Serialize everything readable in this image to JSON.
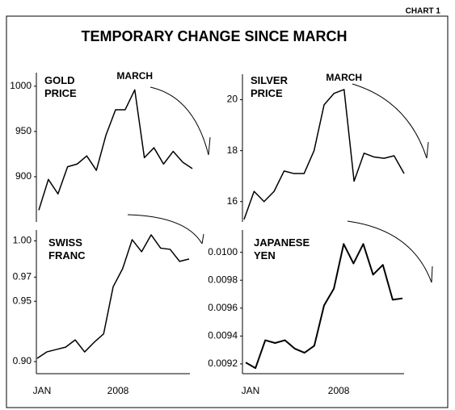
{
  "header": {
    "label": "CHART 1",
    "title": "TEMPORARY CHANGE SINCE MARCH"
  },
  "chart_data": [
    {
      "type": "line",
      "title": "GOLD PRICE",
      "annotation": "MARCH",
      "categories": [
        null,
        null,
        null,
        null,
        null,
        null,
        null,
        null,
        null,
        null,
        null,
        null,
        null,
        null,
        null,
        null,
        null
      ],
      "values": [
        863,
        897,
        881,
        911,
        914,
        923,
        907,
        946,
        974,
        974,
        996,
        921,
        932,
        914,
        928,
        916,
        909
      ],
      "color": "#000000",
      "ylim": [
        850,
        1015
      ],
      "yticks": [
        900,
        950,
        1000
      ]
    },
    {
      "type": "line",
      "title": "SILVER PRICE",
      "annotation": "MARCH",
      "categories": [
        null,
        null,
        null,
        null,
        null,
        null,
        null,
        null,
        null,
        null,
        null,
        null,
        null,
        null,
        null,
        null,
        null
      ],
      "values": [
        15.3,
        16.4,
        16.0,
        16.4,
        17.2,
        17.1,
        17.1,
        18.0,
        19.8,
        20.25,
        20.4,
        16.8,
        17.9,
        17.75,
        17.7,
        17.8,
        17.1
      ],
      "color": "#000000",
      "ylim": [
        15.2,
        21
      ],
      "yticks": [
        16,
        18,
        20
      ]
    },
    {
      "type": "line",
      "title": "SWISS FRANC",
      "categories": [
        "JAN",
        null,
        null,
        null,
        null,
        null,
        null,
        null,
        "2008",
        null,
        null,
        null,
        null,
        null,
        null,
        null,
        null
      ],
      "values": [
        0.9027,
        0.908,
        0.91,
        0.912,
        0.918,
        0.908,
        0.916,
        0.923,
        0.962,
        0.977,
        1.001,
        0.991,
        1.005,
        0.994,
        0.993,
        0.983,
        0.985
      ],
      "color": "#000000",
      "ylim": [
        0.89,
        1.009
      ],
      "yticks": [
        {
          "value": 0.9,
          "label": "0.90"
        },
        0.95,
        0.97,
        {
          "value": 1,
          "label": "1.00"
        }
      ]
    },
    {
      "type": "line",
      "title": "JAPANESE YEN",
      "categories": [
        "JAN",
        null,
        null,
        null,
        null,
        null,
        null,
        null,
        null,
        "2008",
        null,
        null,
        null,
        null,
        null,
        null,
        null
      ],
      "values": [
        0.00921,
        0.00917,
        0.00937,
        0.00935,
        0.00937,
        0.00931,
        0.00928,
        0.00933,
        0.00962,
        0.00974,
        0.01006,
        0.00992,
        0.01006,
        0.00984,
        0.00991,
        0.00966,
        0.00967
      ],
      "color": "#000000",
      "ylim": [
        0.00913,
        0.01016
      ],
      "yticks": [
        0.0092,
        0.0094,
        0.0096,
        0.0098,
        {
          "value": 0.01,
          "label": "0.0100"
        }
      ]
    }
  ]
}
